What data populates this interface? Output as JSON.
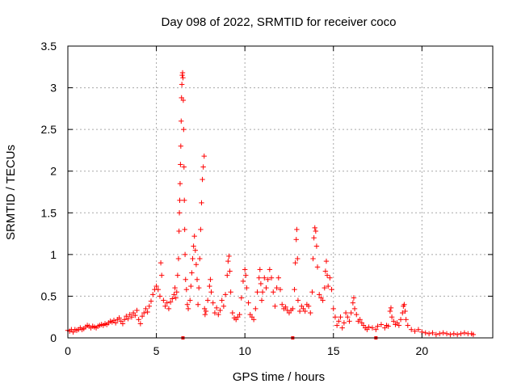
{
  "chart_data": {
    "type": "scatter",
    "title": "Day 098 of 2022, SRMTID for receiver coco",
    "xlabel": "GPS time / hours",
    "ylabel": "SRMTID / TECUs",
    "xlim": [
      0,
      24
    ],
    "ylim": [
      0,
      3.5
    ],
    "xticks": [
      0,
      5,
      10,
      15,
      20
    ],
    "xtick_labels": [
      "0",
      "5",
      "10",
      "15",
      "20"
    ],
    "yticks": [
      0,
      0.5,
      1,
      1.5,
      2,
      2.5,
      3,
      3.5
    ],
    "ytick_labels": [
      "0",
      "0.5",
      "1",
      "1.5",
      "2",
      "2.5",
      "3",
      "3.5"
    ],
    "grid": true,
    "marker": "+",
    "marker_color": "#ff0000",
    "series": [
      {
        "name": "SRMTID",
        "points": [
          [
            0.0,
            0.09
          ],
          [
            0.1,
            0.08
          ],
          [
            0.2,
            0.1
          ],
          [
            0.3,
            0.07
          ],
          [
            0.4,
            0.1
          ],
          [
            0.5,
            0.09
          ],
          [
            0.6,
            0.1
          ],
          [
            0.7,
            0.12
          ],
          [
            0.8,
            0.1
          ],
          [
            0.9,
            0.11
          ],
          [
            1.0,
            0.13
          ],
          [
            1.1,
            0.15
          ],
          [
            1.2,
            0.14
          ],
          [
            1.3,
            0.12
          ],
          [
            1.4,
            0.14
          ],
          [
            1.5,
            0.13
          ],
          [
            1.6,
            0.12
          ],
          [
            1.7,
            0.14
          ],
          [
            1.8,
            0.15
          ],
          [
            1.9,
            0.16
          ],
          [
            2.0,
            0.15
          ],
          [
            2.1,
            0.17
          ],
          [
            2.2,
            0.16
          ],
          [
            2.3,
            0.18
          ],
          [
            2.4,
            0.2
          ],
          [
            2.5,
            0.19
          ],
          [
            2.6,
            0.21
          ],
          [
            2.7,
            0.18
          ],
          [
            2.8,
            0.22
          ],
          [
            2.9,
            0.24
          ],
          [
            3.0,
            0.2
          ],
          [
            3.1,
            0.17
          ],
          [
            3.2,
            0.22
          ],
          [
            3.3,
            0.26
          ],
          [
            3.4,
            0.23
          ],
          [
            3.5,
            0.28
          ],
          [
            3.6,
            0.25
          ],
          [
            3.7,
            0.3
          ],
          [
            3.8,
            0.27
          ],
          [
            3.9,
            0.33
          ],
          [
            4.0,
            0.22
          ],
          [
            4.1,
            0.17
          ],
          [
            4.2,
            0.26
          ],
          [
            4.3,
            0.3
          ],
          [
            4.4,
            0.35
          ],
          [
            4.5,
            0.31
          ],
          [
            4.6,
            0.38
          ],
          [
            4.7,
            0.44
          ],
          [
            4.8,
            0.52
          ],
          [
            4.9,
            0.58
          ],
          [
            5.0,
            0.62
          ],
          [
            5.1,
            0.58
          ],
          [
            5.2,
            0.5
          ],
          [
            5.25,
            0.9
          ],
          [
            5.3,
            0.75
          ],
          [
            5.4,
            0.45
          ],
          [
            5.5,
            0.38
          ],
          [
            5.6,
            0.42
          ],
          [
            5.7,
            0.35
          ],
          [
            5.8,
            0.43
          ],
          [
            5.9,
            0.47
          ],
          [
            6.0,
            0.52
          ],
          [
            6.05,
            0.6
          ],
          [
            6.1,
            0.48
          ],
          [
            6.15,
            0.55
          ],
          [
            6.2,
            0.75
          ],
          [
            6.25,
            0.95
          ],
          [
            6.28,
            1.28
          ],
          [
            6.3,
            1.5
          ],
          [
            6.32,
            1.65
          ],
          [
            6.34,
            1.85
          ],
          [
            6.36,
            2.08
          ],
          [
            6.38,
            2.3
          ],
          [
            6.4,
            2.6
          ],
          [
            6.42,
            2.88
          ],
          [
            6.44,
            3.04
          ],
          [
            6.46,
            3.15
          ],
          [
            6.48,
            3.18
          ],
          [
            6.5,
            3.12
          ],
          [
            6.52,
            2.85
          ],
          [
            6.54,
            2.5
          ],
          [
            6.56,
            2.05
          ],
          [
            6.58,
            1.65
          ],
          [
            6.6,
            1.3
          ],
          [
            6.62,
            1.0
          ],
          [
            6.65,
            0.7
          ],
          [
            6.7,
            0.58
          ],
          [
            6.75,
            0.4
          ],
          [
            6.8,
            0.35
          ],
          [
            6.9,
            0.45
          ],
          [
            6.95,
            0.62
          ],
          [
            7.0,
            0.78
          ],
          [
            7.05,
            0.95
          ],
          [
            7.1,
            1.1
          ],
          [
            7.15,
            1.22
          ],
          [
            7.2,
            1.05
          ],
          [
            7.25,
            0.88
          ],
          [
            7.3,
            0.7
          ],
          [
            7.35,
            0.4
          ],
          [
            7.4,
            0.6
          ],
          [
            7.45,
            0.95
          ],
          [
            7.5,
            1.3
          ],
          [
            7.55,
            1.62
          ],
          [
            7.6,
            1.9
          ],
          [
            7.65,
            2.05
          ],
          [
            7.7,
            2.18
          ],
          [
            7.72,
            0.35
          ],
          [
            7.75,
            0.28
          ],
          [
            7.8,
            0.32
          ],
          [
            7.9,
            0.45
          ],
          [
            8.0,
            0.62
          ],
          [
            8.05,
            0.7
          ],
          [
            8.1,
            0.55
          ],
          [
            8.2,
            0.42
          ],
          [
            8.3,
            0.3
          ],
          [
            8.4,
            0.36
          ],
          [
            8.5,
            0.28
          ],
          [
            8.6,
            0.33
          ],
          [
            8.7,
            0.45
          ],
          [
            8.8,
            0.38
          ],
          [
            8.9,
            0.52
          ],
          [
            9.0,
            0.75
          ],
          [
            9.05,
            0.92
          ],
          [
            9.1,
            0.98
          ],
          [
            9.15,
            0.8
          ],
          [
            9.2,
            0.55
          ],
          [
            9.3,
            0.3
          ],
          [
            9.4,
            0.24
          ],
          [
            9.5,
            0.22
          ],
          [
            9.6,
            0.25
          ],
          [
            9.7,
            0.28
          ],
          [
            9.8,
            0.48
          ],
          [
            9.9,
            0.68
          ],
          [
            10.0,
            0.82
          ],
          [
            10.05,
            0.75
          ],
          [
            10.1,
            0.6
          ],
          [
            10.2,
            0.42
          ],
          [
            10.3,
            0.28
          ],
          [
            10.4,
            0.25
          ],
          [
            10.5,
            0.22
          ],
          [
            10.6,
            0.35
          ],
          [
            10.7,
            0.55
          ],
          [
            10.8,
            0.72
          ],
          [
            10.85,
            0.82
          ],
          [
            10.9,
            0.65
          ],
          [
            10.95,
            0.45
          ],
          [
            11.0,
            0.55
          ],
          [
            11.1,
            0.72
          ],
          [
            11.2,
            0.6
          ],
          [
            11.3,
            0.7
          ],
          [
            11.4,
            0.82
          ],
          [
            11.5,
            0.72
          ],
          [
            11.6,
            0.55
          ],
          [
            11.7,
            0.38
          ],
          [
            11.8,
            0.6
          ],
          [
            11.9,
            0.72
          ],
          [
            12.0,
            0.58
          ],
          [
            12.1,
            0.4
          ],
          [
            12.2,
            0.35
          ],
          [
            12.3,
            0.37
          ],
          [
            12.4,
            0.33
          ],
          [
            12.5,
            0.3
          ],
          [
            12.6,
            0.33
          ],
          [
            12.7,
            0.35
          ],
          [
            12.8,
            0.58
          ],
          [
            12.85,
            0.9
          ],
          [
            12.9,
            1.18
          ],
          [
            12.93,
            1.3
          ],
          [
            12.97,
            0.95
          ],
          [
            13.0,
            0.45
          ],
          [
            13.1,
            0.32
          ],
          [
            13.2,
            0.38
          ],
          [
            13.3,
            0.35
          ],
          [
            13.4,
            0.32
          ],
          [
            13.5,
            0.4
          ],
          [
            13.6,
            0.38
          ],
          [
            13.7,
            0.3
          ],
          [
            13.8,
            0.55
          ],
          [
            13.85,
            0.95
          ],
          [
            13.9,
            1.2
          ],
          [
            13.95,
            1.32
          ],
          [
            14.0,
            1.28
          ],
          [
            14.05,
            1.1
          ],
          [
            14.1,
            0.85
          ],
          [
            14.2,
            0.52
          ],
          [
            14.3,
            0.48
          ],
          [
            14.4,
            0.45
          ],
          [
            14.5,
            0.6
          ],
          [
            14.55,
            0.8
          ],
          [
            14.6,
            0.92
          ],
          [
            14.65,
            0.75
          ],
          [
            14.7,
            0.62
          ],
          [
            14.8,
            0.72
          ],
          [
            14.9,
            0.58
          ],
          [
            15.0,
            0.35
          ],
          [
            15.1,
            0.25
          ],
          [
            15.2,
            0.15
          ],
          [
            15.3,
            0.2
          ],
          [
            15.4,
            0.25
          ],
          [
            15.5,
            0.12
          ],
          [
            15.6,
            0.18
          ],
          [
            15.7,
            0.3
          ],
          [
            15.8,
            0.25
          ],
          [
            15.9,
            0.2
          ],
          [
            16.0,
            0.3
          ],
          [
            16.1,
            0.42
          ],
          [
            16.15,
            0.48
          ],
          [
            16.2,
            0.35
          ],
          [
            16.3,
            0.28
          ],
          [
            16.4,
            0.2
          ],
          [
            16.5,
            0.22
          ],
          [
            16.6,
            0.18
          ],
          [
            16.7,
            0.15
          ],
          [
            16.8,
            0.12
          ],
          [
            16.9,
            0.1
          ],
          [
            17.0,
            0.13
          ],
          [
            17.2,
            0.12
          ],
          [
            17.4,
            0.1
          ],
          [
            17.5,
            0.14
          ],
          [
            17.7,
            0.16
          ],
          [
            17.9,
            0.12
          ],
          [
            18.0,
            0.15
          ],
          [
            18.1,
            0.14
          ],
          [
            18.2,
            0.32
          ],
          [
            18.25,
            0.36
          ],
          [
            18.3,
            0.25
          ],
          [
            18.4,
            0.2
          ],
          [
            18.5,
            0.16
          ],
          [
            18.6,
            0.18
          ],
          [
            18.7,
            0.15
          ],
          [
            18.8,
            0.22
          ],
          [
            18.9,
            0.3
          ],
          [
            18.95,
            0.38
          ],
          [
            19.0,
            0.4
          ],
          [
            19.05,
            0.32
          ],
          [
            19.1,
            0.22
          ],
          [
            19.2,
            0.15
          ],
          [
            19.4,
            0.1
          ],
          [
            19.6,
            0.08
          ],
          [
            19.8,
            0.1
          ],
          [
            20.0,
            0.07
          ],
          [
            20.2,
            0.06
          ],
          [
            20.4,
            0.05
          ],
          [
            20.6,
            0.06
          ],
          [
            20.8,
            0.04
          ],
          [
            21.0,
            0.05
          ],
          [
            21.2,
            0.06
          ],
          [
            21.4,
            0.05
          ],
          [
            21.6,
            0.04
          ],
          [
            21.8,
            0.05
          ],
          [
            22.0,
            0.04
          ],
          [
            22.2,
            0.05
          ],
          [
            22.4,
            0.06
          ],
          [
            22.6,
            0.05
          ],
          [
            22.8,
            0.05
          ],
          [
            22.9,
            0.04
          ]
        ],
        "base_markers": [
          6.5,
          12.7,
          17.4
        ]
      }
    ]
  }
}
